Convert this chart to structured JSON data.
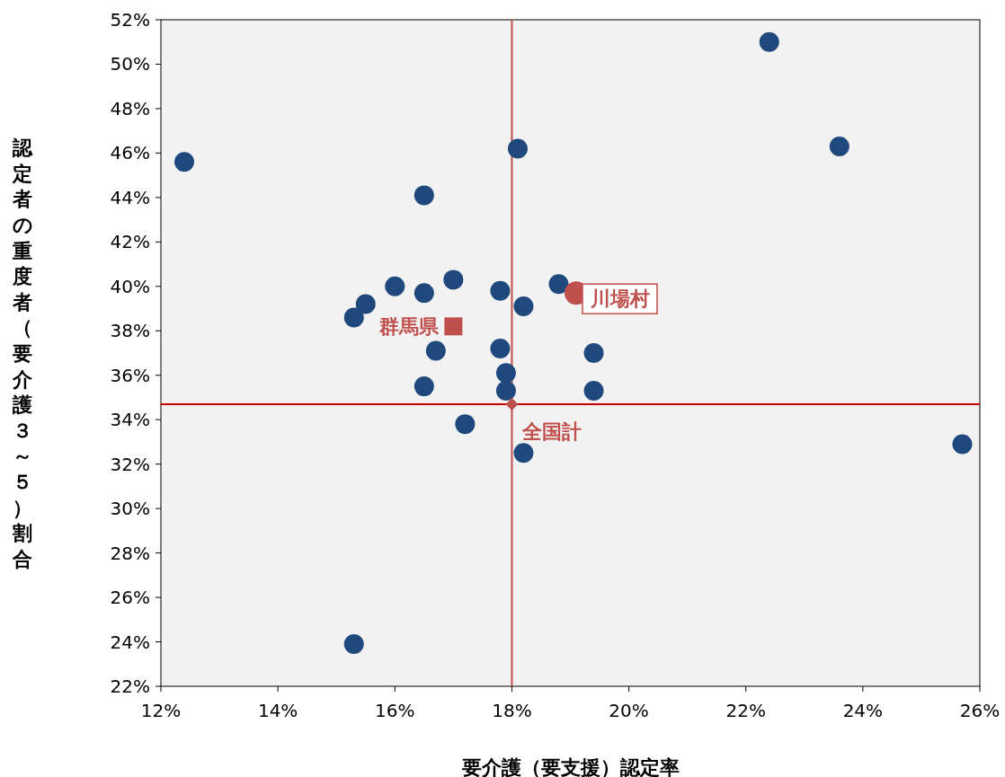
{
  "chart_data": {
    "type": "scatter",
    "xlabel": "要介護（要支援）認定率",
    "ylabel": "認定者の重度者（要介護３～５）割合",
    "series": [
      {
        "color": "#1f497d",
        "marker": "circle",
        "x": [
          22.4,
          23.6,
          12.4,
          18.1,
          16.5,
          18.8,
          17.0,
          16.0,
          16.5,
          17.8,
          18.2,
          15.5,
          15.3,
          17.8,
          16.7,
          19.4,
          17.9,
          16.5,
          17.9,
          19.4,
          17.2,
          18.2,
          25.7,
          15.3
        ],
        "values": [
          51.0,
          46.3,
          45.6,
          46.2,
          44.1,
          40.1,
          40.3,
          40.0,
          39.7,
          39.8,
          39.1,
          39.2,
          38.6,
          37.2,
          37.1,
          37.0,
          36.1,
          35.5,
          35.3,
          35.3,
          33.8,
          32.5,
          32.9,
          23.9
        ]
      },
      {
        "name": "川場村",
        "color": "#c0504d",
        "marker": "circle",
        "x": [
          19.1
        ],
        "values": [
          39.7
        ]
      },
      {
        "name": "群馬県",
        "color": "#c0504d",
        "marker": "square",
        "x": [
          17.0
        ],
        "values": [
          38.2
        ]
      },
      {
        "name": "全国計",
        "color": "#c0504d",
        "marker": "diamond",
        "x": [
          18.0
        ],
        "values": [
          34.7
        ]
      }
    ],
    "xlim": [
      12,
      26
    ],
    "xticks": [
      {
        "value": 12,
        "label": "12%"
      },
      {
        "value": 14,
        "label": "14%"
      },
      {
        "value": 16,
        "label": "16%"
      },
      {
        "value": 18,
        "label": "18%"
      },
      {
        "value": 20,
        "label": "20%"
      },
      {
        "value": 22,
        "label": "22%"
      },
      {
        "value": 24,
        "label": "24%"
      },
      {
        "value": 26,
        "label": "26%"
      }
    ],
    "ylim": [
      22,
      52
    ],
    "yticks": [
      {
        "value": 22,
        "label": "22%"
      },
      {
        "value": 24,
        "label": "24%"
      },
      {
        "value": 26,
        "label": "26%"
      },
      {
        "value": 28,
        "label": "28%"
      },
      {
        "value": 30,
        "label": "30%"
      },
      {
        "value": 32,
        "label": "32%"
      },
      {
        "value": 34,
        "label": "34%"
      },
      {
        "value": 36,
        "label": "36%"
      },
      {
        "value": 38,
        "label": "38%"
      },
      {
        "value": 40,
        "label": "40%"
      },
      {
        "value": 42,
        "label": "42%"
      },
      {
        "value": 44,
        "label": "44%"
      },
      {
        "value": 46,
        "label": "46%"
      },
      {
        "value": 48,
        "label": "48%"
      },
      {
        "value": 50,
        "label": "50%"
      },
      {
        "value": 52,
        "label": "52%"
      }
    ],
    "ref_lines": [
      {
        "axis": "x",
        "value": 18.0,
        "color": "#c0504d"
      },
      {
        "axis": "y",
        "value": 34.7,
        "color": "#cc0000"
      }
    ],
    "grid": false,
    "legend": false
  }
}
